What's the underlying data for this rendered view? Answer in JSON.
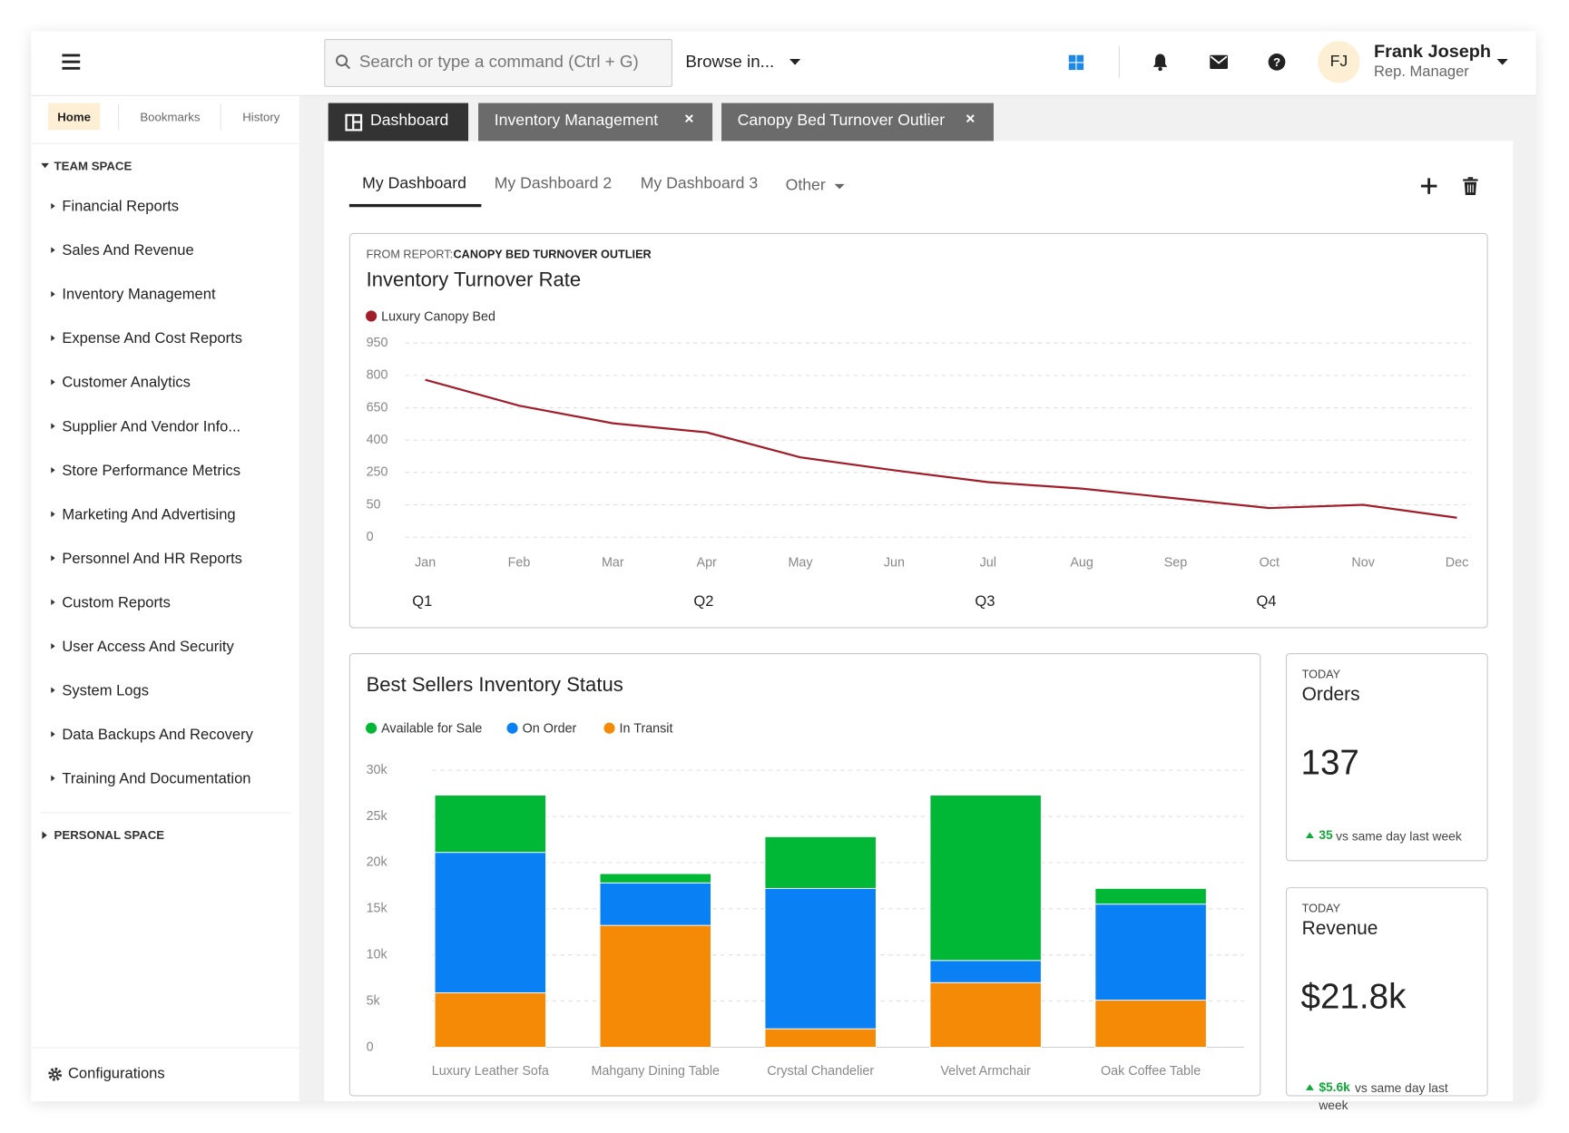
{
  "header": {
    "search_placeholder": "Search or type a command (Ctrl + G)",
    "browse": "Browse in...",
    "user_initials": "FJ",
    "user_name": "Frank Joseph",
    "user_role": "Rep. Manager"
  },
  "sidebar": {
    "tabs": [
      "Home",
      "Bookmarks",
      "History"
    ],
    "team_space": "TEAM SPACE",
    "items": [
      "Financial Reports",
      "Sales And Revenue",
      "Inventory Management",
      "Expense And Cost Reports",
      "Customer Analytics",
      "Supplier And Vendor Info...",
      "Store Performance Metrics",
      "Marketing And Advertising",
      "Personnel And HR Reports",
      "Custom Reports",
      "User Access And Security",
      "System Logs",
      "Data Backups And Recovery",
      "Training And Documentation"
    ],
    "personal_space": "PERSONAL SPACE",
    "footer": "Configurations"
  },
  "tabs": [
    "Dashboard",
    "Inventory Management",
    "Canopy Bed Turnover Outlier"
  ],
  "subtabs": [
    "My Dashboard",
    "My Dashboard 2",
    "My Dashboard 3",
    "Other"
  ],
  "chart_data": [
    {
      "type": "line",
      "source_prefix": "FROM REPORT:",
      "source": "CANOPY BED TURNOVER OUTLIER",
      "title": "Inventory Turnover Rate",
      "categories": [
        "Jan",
        "Feb",
        "Mar",
        "Apr",
        "May",
        "Jun",
        "Jul",
        "Aug",
        "Sep",
        "Oct",
        "Nov",
        "Dec"
      ],
      "groups": [
        "Q1",
        "Q2",
        "Q3",
        "Q4"
      ],
      "series": [
        {
          "name": "Luxury Canopy Bed",
          "color": "#a11d2a",
          "values": [
            780,
            660,
            530,
            460,
            320,
            260,
            190,
            150,
            90,
            45,
            50,
            30
          ]
        }
      ],
      "ylim": [
        0,
        950
      ],
      "yticks": [
        0,
        50,
        250,
        400,
        650,
        800,
        950
      ],
      "grid": true
    },
    {
      "type": "stacked_bar",
      "title": "Best Sellers Inventory Status",
      "categories": [
        "Luxury Leather Sofa",
        "Mahgany Dining Table",
        "Crystal Chandelier",
        "Velvet Armchair",
        "Oak Coffee Table"
      ],
      "series": [
        {
          "name": "Available for Sale",
          "color": "#00b836",
          "values": [
            6200,
            1000,
            5600,
            17900,
            1700
          ]
        },
        {
          "name": "On Order",
          "color": "#0a80f5",
          "values": [
            15200,
            4600,
            15200,
            2400,
            10400
          ]
        },
        {
          "name": "In Transit",
          "color": "#f58a07",
          "values": [
            5900,
            13200,
            2000,
            7000,
            5100
          ]
        }
      ],
      "ylim": [
        0,
        30000
      ],
      "yticks": [
        0,
        {
          "value": 5000,
          "label": "5k"
        },
        {
          "value": 10000,
          "label": "10k"
        },
        {
          "value": 15000,
          "label": "15k"
        },
        {
          "value": 20000,
          "label": "20k"
        },
        {
          "value": 25000,
          "label": "25k"
        },
        {
          "value": 30000,
          "label": "30k"
        }
      ],
      "grid": true
    }
  ],
  "kpis": [
    {
      "label": "TODAY",
      "title": "Orders",
      "value": "137",
      "delta": "35",
      "note": "vs same day last week"
    },
    {
      "label": "TODAY",
      "title": "Revenue",
      "value": "$21.8k",
      "delta": "$5.6k",
      "note": "vs same day last week"
    }
  ]
}
